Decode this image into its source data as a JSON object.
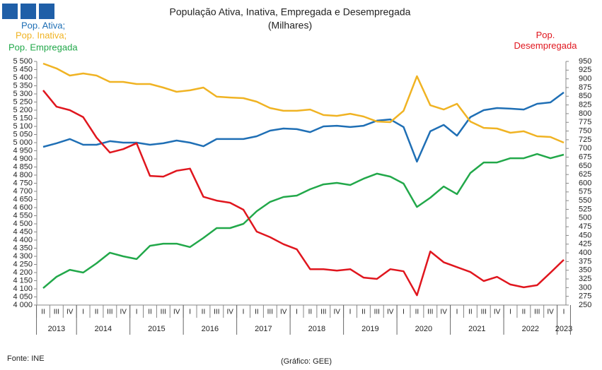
{
  "chart_data": {
    "type": "line",
    "title": "População Ativa, Inativa, Empregada e Desempregada",
    "subtitle": "(Milhares)",
    "source": "Fonte: INE",
    "credit": "(Gráfico: GEE)",
    "categories": [
      "II",
      "III",
      "IV",
      "I",
      "II",
      "III",
      "IV",
      "I",
      "II",
      "III",
      "IV",
      "I",
      "II",
      "III",
      "IV",
      "I",
      "II",
      "III",
      "IV",
      "I",
      "II",
      "III",
      "IV",
      "I",
      "II",
      "III",
      "IV",
      "I",
      "II",
      "III",
      "IV",
      "I",
      "II",
      "III",
      "IV",
      "I",
      "II",
      "III",
      "IV",
      "I"
    ],
    "years": [
      "2013",
      "2014",
      "2015",
      "2016",
      "2017",
      "2018",
      "2019",
      "2020",
      "2021",
      "2022",
      "2023"
    ],
    "ylim": [
      4000,
      5500
    ],
    "yticks": [
      {
        "value": 4000,
        "label": "4 000"
      },
      {
        "value": 4050,
        "label": "4 050"
      },
      {
        "value": 4100,
        "label": "4 100"
      },
      {
        "value": 4150,
        "label": "4 150"
      },
      {
        "value": 4200,
        "label": "4 200"
      },
      {
        "value": 4250,
        "label": "4 250"
      },
      {
        "value": 4300,
        "label": "4 300"
      },
      {
        "value": 4350,
        "label": "4 350"
      },
      {
        "value": 4400,
        "label": "4 400"
      },
      {
        "value": 4450,
        "label": "4 450"
      },
      {
        "value": 4500,
        "label": "4 500"
      },
      {
        "value": 4550,
        "label": "4 550"
      },
      {
        "value": 4600,
        "label": "4 600"
      },
      {
        "value": 4650,
        "label": "4 650"
      },
      {
        "value": 4700,
        "label": "4 700"
      },
      {
        "value": 4750,
        "label": "4 750"
      },
      {
        "value": 4800,
        "label": "4 800"
      },
      {
        "value": 4850,
        "label": "4 850"
      },
      {
        "value": 4900,
        "label": "4 900"
      },
      {
        "value": 4950,
        "label": "4 950"
      },
      {
        "value": 5000,
        "label": "5 000"
      },
      {
        "value": 5050,
        "label": "5 050"
      },
      {
        "value": 5100,
        "label": "5 100"
      },
      {
        "value": 5150,
        "label": "5 150"
      },
      {
        "value": 5200,
        "label": "5 200"
      },
      {
        "value": 5250,
        "label": "5 250"
      },
      {
        "value": 5300,
        "label": "5 300"
      },
      {
        "value": 5350,
        "label": "5 350"
      },
      {
        "value": 5400,
        "label": "5 400"
      },
      {
        "value": 5450,
        "label": "5 450"
      },
      {
        "value": 5500,
        "label": "5 500"
      }
    ],
    "y2lim": [
      250,
      950
    ],
    "y2ticks": [
      250,
      275,
      300,
      325,
      350,
      375,
      400,
      425,
      450,
      475,
      500,
      525,
      550,
      575,
      600,
      625,
      650,
      675,
      700,
      725,
      750,
      775,
      800,
      825,
      850,
      875,
      900,
      925,
      950
    ],
    "series": [
      {
        "name": "Pop. Ativa;",
        "color": "#1f6fb5",
        "values": [
          4974,
          4996,
          5022,
          4987,
          4987,
          5009,
          5000,
          5000,
          4987,
          4996,
          5013,
          5000,
          4978,
          5022,
          5022,
          5022,
          5039,
          5074,
          5087,
          5083,
          5065,
          5100,
          5104,
          5096,
          5104,
          5135,
          5143,
          5096,
          4883,
          5070,
          5109,
          5043,
          5157,
          5200,
          5213,
          5209,
          5204,
          5239,
          5248,
          5309
        ]
      },
      {
        "name": "Pop. Inativa;",
        "color": "#f0b323",
        "values": [
          5487,
          5457,
          5413,
          5426,
          5413,
          5374,
          5374,
          5361,
          5361,
          5339,
          5313,
          5322,
          5339,
          5283,
          5278,
          5274,
          5252,
          5213,
          5196,
          5196,
          5204,
          5170,
          5165,
          5178,
          5161,
          5130,
          5126,
          5196,
          5409,
          5230,
          5204,
          5239,
          5130,
          5091,
          5087,
          5061,
          5070,
          5039,
          5035,
          5000
        ]
      },
      {
        "name": "Pop. Empregada",
        "color": "#22a84a",
        "values": [
          4104,
          4174,
          4217,
          4200,
          4257,
          4322,
          4300,
          4283,
          4365,
          4378,
          4378,
          4357,
          4413,
          4474,
          4474,
          4500,
          4578,
          4635,
          4665,
          4674,
          4713,
          4743,
          4752,
          4739,
          4778,
          4809,
          4791,
          4748,
          4604,
          4661,
          4730,
          4683,
          4813,
          4878,
          4878,
          4904,
          4904,
          4930,
          4904,
          4926
        ]
      },
      {
        "name": "Pop. Desempregada",
        "color": "#e0161e",
        "axis": "y2",
        "values": [
          867,
          820,
          810,
          790,
          731,
          688,
          698,
          715,
          621,
          619,
          636,
          642,
          561,
          550,
          544,
          524,
          461,
          445,
          425,
          410,
          353,
          353,
          349,
          353,
          329,
          325,
          353,
          347,
          278,
          404,
          373,
          359,
          345,
          319,
          331,
          309,
          301,
          307,
          343,
          380
        ]
      }
    ]
  }
}
